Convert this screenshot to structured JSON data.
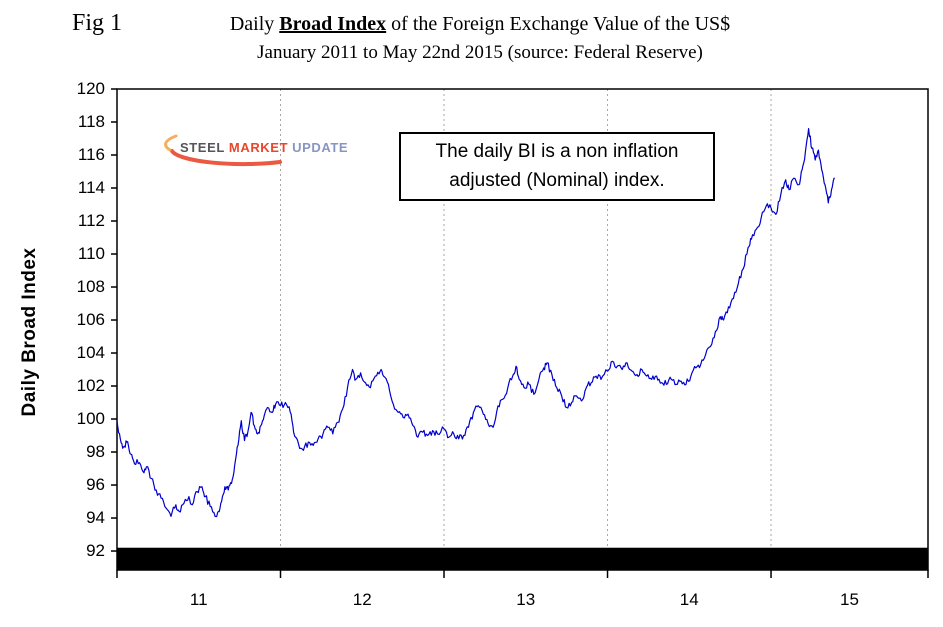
{
  "figure": {
    "fig_label": "Fig 1",
    "title_prefix": "Daily",
    "title_emphasis": "Broad Index",
    "title_suffix": "of the Foreign Exchange Value of the US$",
    "subtitle": "January 2011 to May 22nd 2015 (source: Federal Reserve)"
  },
  "annotation": {
    "line1": "The daily BI is a non inflation",
    "line2": "adjusted (Nominal) index."
  },
  "logo": {
    "word1": "STEEL",
    "word2": "MARKET",
    "word3": "UPDATE"
  },
  "colors": {
    "line": "#0000CC",
    "band": "#000000",
    "grid": "#a6a6a6",
    "border": "#000000",
    "logo_swoosh": "#e8472b"
  },
  "chart_data": {
    "type": "line",
    "title": "Daily Broad Index of the Foreign Exchange Value of the US$",
    "subtitle": "January 2011 to May 22nd 2015 (source: Federal Reserve)",
    "ylabel": "Daily Broad Index",
    "xlabel": "",
    "y_ticks": [
      120,
      118,
      116,
      114,
      112,
      110,
      108,
      106,
      104,
      102,
      100,
      98,
      96,
      94,
      92
    ],
    "x_tick_labels": [
      "11",
      "12",
      "13",
      "14",
      "15"
    ],
    "x_tick_positions": [
      2011.5,
      2012.5,
      2013.5,
      2014.5,
      2015.48
    ],
    "x_boundaries": [
      2011,
      2012,
      2013,
      2014,
      2015,
      2015.96
    ],
    "x_range": [
      2011.0,
      2015.96
    ],
    "y_range": [
      90.85,
      120
    ],
    "band_top_value": 92.2,
    "grid": "vertical-dotted",
    "legend": "none",
    "series": [
      {
        "name": "Daily Broad Index (Nominal)",
        "points": [
          [
            2011.0,
            99.9
          ],
          [
            2011.02,
            98.8
          ],
          [
            2011.04,
            98.3
          ],
          [
            2011.06,
            98.6
          ],
          [
            2011.08,
            97.9
          ],
          [
            2011.1,
            97.5
          ],
          [
            2011.13,
            97.3
          ],
          [
            2011.16,
            96.8
          ],
          [
            2011.18,
            97.1
          ],
          [
            2011.21,
            96.4
          ],
          [
            2011.24,
            95.7
          ],
          [
            2011.27,
            95.2
          ],
          [
            2011.3,
            94.6
          ],
          [
            2011.33,
            94.1
          ],
          [
            2011.36,
            94.8
          ],
          [
            2011.38,
            94.4
          ],
          [
            2011.41,
            94.9
          ],
          [
            2011.44,
            95.3
          ],
          [
            2011.46,
            94.8
          ],
          [
            2011.49,
            95.6
          ],
          [
            2011.52,
            95.9
          ],
          [
            2011.54,
            95.3
          ],
          [
            2011.57,
            94.7
          ],
          [
            2011.6,
            94.1
          ],
          [
            2011.62,
            94.4
          ],
          [
            2011.64,
            95.0
          ],
          [
            2011.66,
            95.9
          ],
          [
            2011.68,
            95.7
          ],
          [
            2011.7,
            96.1
          ],
          [
            2011.72,
            97.2
          ],
          [
            2011.74,
            98.4
          ],
          [
            2011.76,
            99.9
          ],
          [
            2011.78,
            98.7
          ],
          [
            2011.8,
            99.2
          ],
          [
            2011.82,
            100.4
          ],
          [
            2011.84,
            99.6
          ],
          [
            2011.86,
            99.1
          ],
          [
            2011.88,
            99.6
          ],
          [
            2011.9,
            100.2
          ],
          [
            2011.92,
            100.7
          ],
          [
            2011.95,
            100.4
          ],
          [
            2011.97,
            100.9
          ],
          [
            2012.0,
            100.8
          ],
          [
            2012.03,
            101.0
          ],
          [
            2012.06,
            100.4
          ],
          [
            2012.08,
            99.2
          ],
          [
            2012.11,
            98.5
          ],
          [
            2012.14,
            98.1
          ],
          [
            2012.17,
            98.6
          ],
          [
            2012.2,
            98.4
          ],
          [
            2012.23,
            98.8
          ],
          [
            2012.26,
            99.1
          ],
          [
            2012.29,
            99.5
          ],
          [
            2012.32,
            99.1
          ],
          [
            2012.35,
            99.8
          ],
          [
            2012.38,
            100.6
          ],
          [
            2012.41,
            101.9
          ],
          [
            2012.44,
            103.0
          ],
          [
            2012.46,
            102.4
          ],
          [
            2012.49,
            102.8
          ],
          [
            2012.52,
            102.2
          ],
          [
            2012.55,
            101.9
          ],
          [
            2012.58,
            102.6
          ],
          [
            2012.61,
            102.9
          ],
          [
            2012.63,
            102.6
          ],
          [
            2012.66,
            102.1
          ],
          [
            2012.69,
            100.9
          ],
          [
            2012.72,
            100.4
          ],
          [
            2012.75,
            100.1
          ],
          [
            2012.78,
            100.3
          ],
          [
            2012.81,
            99.6
          ],
          [
            2012.84,
            98.9
          ],
          [
            2012.87,
            99.2
          ],
          [
            2012.9,
            99.0
          ],
          [
            2012.93,
            99.3
          ],
          [
            2012.96,
            99.1
          ],
          [
            2013.0,
            99.4
          ],
          [
            2013.03,
            98.9
          ],
          [
            2013.06,
            99.1
          ],
          [
            2013.09,
            98.8
          ],
          [
            2013.12,
            99.0
          ],
          [
            2013.15,
            99.5
          ],
          [
            2013.18,
            100.4
          ],
          [
            2013.21,
            100.8
          ],
          [
            2013.24,
            100.3
          ],
          [
            2013.27,
            99.7
          ],
          [
            2013.3,
            99.5
          ],
          [
            2013.33,
            100.8
          ],
          [
            2013.36,
            101.2
          ],
          [
            2013.39,
            101.9
          ],
          [
            2013.42,
            102.6
          ],
          [
            2013.44,
            103.2
          ],
          [
            2013.46,
            102.4
          ],
          [
            2013.49,
            101.9
          ],
          [
            2013.52,
            102.1
          ],
          [
            2013.55,
            101.5
          ],
          [
            2013.58,
            102.4
          ],
          [
            2013.61,
            103.1
          ],
          [
            2013.63,
            103.4
          ],
          [
            2013.66,
            102.7
          ],
          [
            2013.69,
            101.9
          ],
          [
            2013.72,
            101.4
          ],
          [
            2013.75,
            100.7
          ],
          [
            2013.78,
            101.0
          ],
          [
            2013.81,
            101.4
          ],
          [
            2013.84,
            101.1
          ],
          [
            2013.87,
            101.9
          ],
          [
            2013.9,
            102.2
          ],
          [
            2013.93,
            102.6
          ],
          [
            2013.96,
            102.4
          ],
          [
            2014.0,
            102.9
          ],
          [
            2014.03,
            103.5
          ],
          [
            2014.06,
            103.2
          ],
          [
            2014.09,
            103.0
          ],
          [
            2014.12,
            103.4
          ],
          [
            2014.15,
            102.9
          ],
          [
            2014.18,
            102.7
          ],
          [
            2014.21,
            103.0
          ],
          [
            2014.24,
            102.6
          ],
          [
            2014.27,
            102.4
          ],
          [
            2014.3,
            102.6
          ],
          [
            2014.33,
            102.2
          ],
          [
            2014.36,
            102.1
          ],
          [
            2014.39,
            102.4
          ],
          [
            2014.42,
            102.1
          ],
          [
            2014.45,
            102.3
          ],
          [
            2014.48,
            102.1
          ],
          [
            2014.51,
            102.6
          ],
          [
            2014.54,
            103.1
          ],
          [
            2014.57,
            103.3
          ],
          [
            2014.6,
            103.9
          ],
          [
            2014.63,
            104.4
          ],
          [
            2014.66,
            105.3
          ],
          [
            2014.69,
            106.2
          ],
          [
            2014.71,
            106.0
          ],
          [
            2014.74,
            106.8
          ],
          [
            2014.77,
            107.3
          ],
          [
            2014.8,
            108.2
          ],
          [
            2014.83,
            109.1
          ],
          [
            2014.86,
            110.4
          ],
          [
            2014.88,
            110.9
          ],
          [
            2014.91,
            111.5
          ],
          [
            2014.94,
            112.2
          ],
          [
            2014.97,
            112.9
          ],
          [
            2015.0,
            112.8
          ],
          [
            2015.03,
            112.4
          ],
          [
            2015.06,
            113.6
          ],
          [
            2015.09,
            114.5
          ],
          [
            2015.11,
            113.9
          ],
          [
            2015.14,
            114.6
          ],
          [
            2015.17,
            114.2
          ],
          [
            2015.19,
            115.1
          ],
          [
            2015.21,
            116.2
          ],
          [
            2015.23,
            117.6
          ],
          [
            2015.25,
            116.4
          ],
          [
            2015.27,
            115.7
          ],
          [
            2015.29,
            116.3
          ],
          [
            2015.31,
            115.1
          ],
          [
            2015.33,
            114.2
          ],
          [
            2015.35,
            113.1
          ],
          [
            2015.37,
            113.9
          ],
          [
            2015.39,
            114.6
          ]
        ]
      }
    ]
  }
}
